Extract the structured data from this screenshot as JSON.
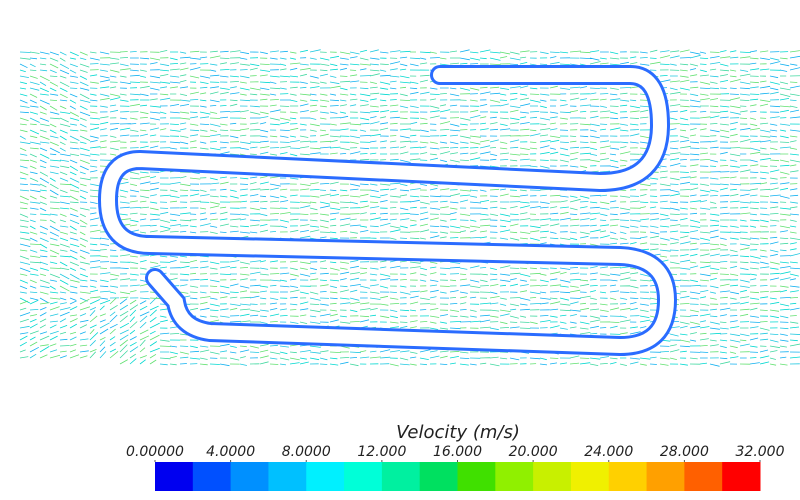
{
  "colorbar": {
    "title": "Velocity (m/s)",
    "range": [
      0,
      32
    ],
    "ticks": [
      {
        "value": 0,
        "label": "0.00000"
      },
      {
        "value": 4,
        "label": "4.0000"
      },
      {
        "value": 8,
        "label": "8.0000"
      },
      {
        "value": 12,
        "label": "12.000"
      },
      {
        "value": 16,
        "label": "16.000"
      },
      {
        "value": 20,
        "label": "20.000"
      },
      {
        "value": 24,
        "label": "24.000"
      },
      {
        "value": 28,
        "label": "28.000"
      },
      {
        "value": 32,
        "label": "32.000"
      }
    ],
    "colors": [
      "#0000f0",
      "#0050ff",
      "#0090ff",
      "#00c0ff",
      "#00f0ff",
      "#00ffd8",
      "#00f0a0",
      "#00e060",
      "#40e000",
      "#90f000",
      "#c8f000",
      "#f0f000",
      "#ffd000",
      "#ffa000",
      "#ff6000",
      "#ff0000"
    ]
  }
}
